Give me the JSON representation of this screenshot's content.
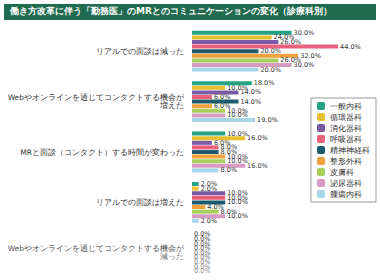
{
  "chart_data": {
    "type": "bar",
    "title": "働き方改革に伴う「勤務医」のMRとのコミュニケーションの変化（診療科別）",
    "orientation": "horizontal",
    "categories": [
      "リアルでの面談は減った",
      "Webやオンラインを通じてコンタクトする機会が増えた",
      "MRと面談（コンタクト）する時間が変わった",
      "リアルでの面談は増えた",
      "Webやオンラインを通じてコンタクトする機会が減った"
    ],
    "xlim": [
      0,
      50
    ],
    "tick_labels": false,
    "grid": false,
    "legend": "right",
    "data_labels": true,
    "series": [
      {
        "name": "一般内科",
        "color": "#23a383",
        "values": [
          30,
          18,
          10,
          2,
          0
        ],
        "value_labels": [
          "30.0%",
          "18.0%",
          "10.0%",
          "2.0%",
          "0.0%"
        ]
      },
      {
        "name": "循環器科",
        "color": "#e6bf2e",
        "values": [
          24,
          10,
          16,
          2,
          0
        ],
        "value_labels": [
          "24.0%",
          "10.0%",
          "16.0%",
          "2.0%",
          "0.0%"
        ]
      },
      {
        "name": "消化器科",
        "color": "#7a5aa6",
        "values": [
          26,
          14,
          6,
          10,
          0
        ],
        "value_labels": [
          "26.0%",
          "14.0%",
          "6.0%",
          "10.0%",
          "0.0%"
        ]
      },
      {
        "name": "呼吸器科",
        "color": "#e8607a",
        "values": [
          44,
          6,
          8,
          10,
          0
        ],
        "value_labels": [
          "44.0%",
          "6.0%",
          "8.0%",
          "10.0%",
          "0.0%"
        ]
      },
      {
        "name": "精神神経科",
        "color": "#1d5a6c",
        "values": [
          20,
          14,
          8,
          10,
          0
        ],
        "value_labels": [
          "20.0%",
          "14.0%",
          "8.0%",
          "10.0%",
          "0.0%"
        ]
      },
      {
        "name": "整形外科",
        "color": "#f0a03c",
        "values": [
          32,
          6,
          10,
          4,
          0
        ],
        "value_labels": [
          "32.0%",
          "6.0%",
          "10.0%",
          "4.0%",
          "0.0%"
        ]
      },
      {
        "name": "皮膚科",
        "color": "#a6cf5c",
        "values": [
          26,
          10,
          10,
          8,
          0
        ],
        "value_labels": [
          "26.0%",
          "10.0%",
          "10.0%",
          "8.0%",
          "0.0%"
        ]
      },
      {
        "name": "泌尿器科",
        "color": "#d79ac2",
        "values": [
          30,
          10,
          16,
          10,
          0
        ],
        "value_labels": [
          "30.0%",
          "10.0%",
          "16.0%",
          "10.0%",
          "0.0%"
        ]
      },
      {
        "name": "腫瘍内科",
        "color": "#a6d6e8",
        "values": [
          20,
          19,
          8,
          2,
          0
        ],
        "value_labels": [
          "20.0%",
          "19.0%",
          "8.0%",
          "2.0%",
          "0.0%"
        ]
      }
    ]
  }
}
